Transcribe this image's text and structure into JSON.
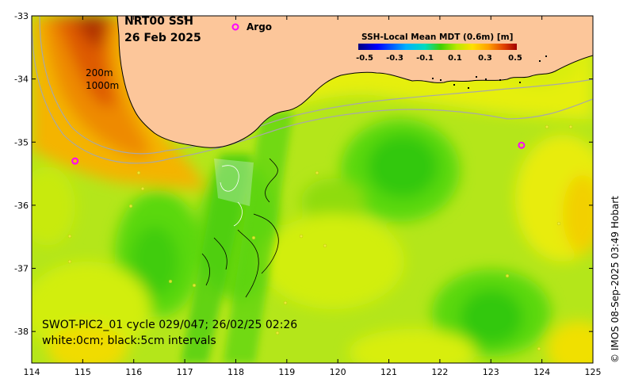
{
  "title": {
    "line1": "NRT00 SSH",
    "line2": "26 Feb 2025"
  },
  "legend": {
    "argo_symbol": "o",
    "argo_label": "Argo"
  },
  "colorbar": {
    "title": "SSH-Local Mean MDT (0.6m) [m]",
    "ticks": [
      "-0.5",
      "-0.3",
      "-0.1",
      "0.1",
      "0.3",
      "0.5"
    ],
    "colors": [
      "#00007f",
      "#0000ff",
      "#007fff",
      "#00dfdf",
      "#30d000",
      "#7fe000",
      "#d8f000",
      "#ffd000",
      "#ff8c00",
      "#e04000",
      "#a00000"
    ]
  },
  "depth_labels": [
    "200m",
    "1000m"
  ],
  "swot_info": {
    "line1": "SWOT-PIC2_01 cycle 029/047; 26/02/25 02:26",
    "line2": "white:0cm; black:5cm intervals"
  },
  "credit": "© IMOS 08-Sep-2025 03:49 Hobart",
  "axes": {
    "x_ticks": [
      "114",
      "115",
      "116",
      "117",
      "118",
      "119",
      "120",
      "121",
      "122",
      "123",
      "124",
      "125"
    ],
    "y_ticks": [
      "-33",
      "-34",
      "-35",
      "-36",
      "-37",
      "-38"
    ],
    "lon_range": [
      114,
      125
    ],
    "lat_range": [
      -38.5,
      -33
    ]
  },
  "colors": {
    "land": "#fcc69a",
    "coast": "#000000",
    "isobath": "#a8a8a8",
    "argo": "#ff00ff"
  },
  "argo_floats": [
    {
      "lon": 114.85,
      "lat": -35.3
    },
    {
      "lon": 123.6,
      "lat": -35.05
    }
  ]
}
